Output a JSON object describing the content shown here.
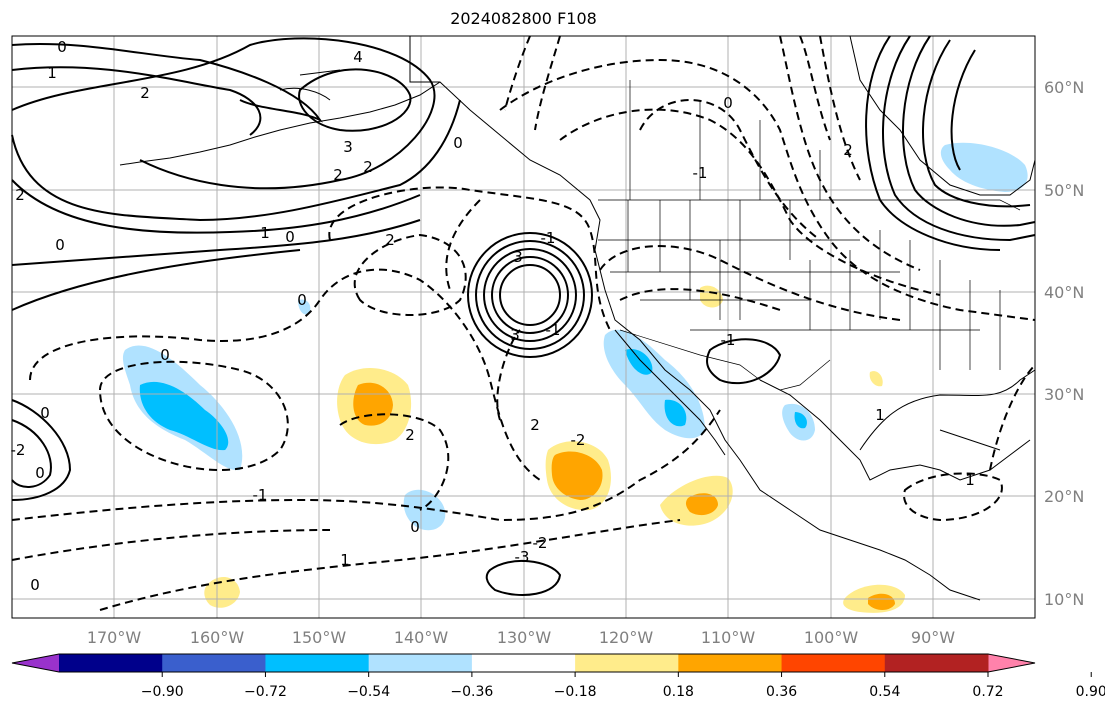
{
  "title": "2024082800 F108",
  "map": {
    "lon_labels": [
      "170°W",
      "160°W",
      "150°W",
      "140°W",
      "130°W",
      "120°W",
      "110°W",
      "100°W",
      "90°W"
    ],
    "lat_labels": [
      "10°N",
      "20°N",
      "30°N",
      "40°N",
      "50°N",
      "60°N"
    ],
    "contour_labels": [
      "0",
      "1",
      "2",
      "4",
      "3",
      "2",
      "2",
      "0",
      "1",
      "0",
      "2",
      "3",
      "0",
      "2",
      "2",
      "1",
      "3",
      "-1",
      "-2",
      "-3",
      "-2",
      "-1",
      "1",
      "2",
      "0",
      "0",
      "0",
      "0",
      "-1",
      "0",
      "2",
      "-1",
      "-2",
      "0",
      "1",
      "-1",
      "0"
    ]
  },
  "colorbar": {
    "tick_labels": [
      "−0.90",
      "−0.72",
      "−0.54",
      "−0.36",
      "−0.18",
      "0.18",
      "0.36",
      "0.54",
      "0.72",
      "0.90"
    ],
    "colors": [
      "#9932cc",
      "#00008b",
      "#3a5fcd",
      "#00bfff",
      "#b0e2ff",
      "#ffffff",
      "#ffec8b",
      "#ffa500",
      "#ff4500",
      "#b22222",
      "#ff82ab"
    ]
  }
}
